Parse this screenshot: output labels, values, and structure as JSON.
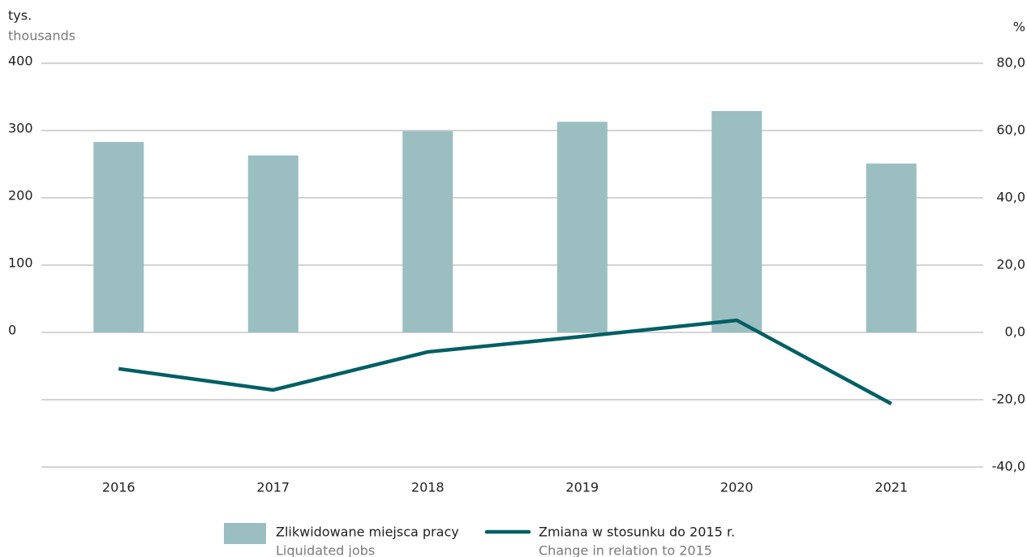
{
  "chart_data": {
    "type": "bar-line",
    "y_label": "tys.",
    "y_label_en": "thousands",
    "y2_label": "%",
    "categories": [
      "2016",
      "2017",
      "2018",
      "2019",
      "2020",
      "2021"
    ],
    "series": [
      {
        "name": "Zlikwidowane miejsca pracy",
        "name_en": "Liquidated jobs",
        "type": "bar",
        "color": "#9bbec1",
        "values": [
          283,
          263,
          299,
          313,
          329,
          251
        ]
      },
      {
        "name": "Zmiana w stosunku do 2015 r.",
        "name_en": "Change in relation to 2015",
        "type": "line",
        "axis": "y2",
        "color": "#005f63",
        "values": [
          -10.8,
          -17.1,
          -5.8,
          -1.2,
          3.6,
          -21.2
        ]
      }
    ],
    "ylim": [
      -200,
      400
    ],
    "yticks": [
      0,
      100,
      200,
      300,
      400
    ],
    "y2lim": [
      -40,
      80
    ],
    "y2ticks": [
      {
        "value": -40,
        "label": "-40,0"
      },
      {
        "value": -20,
        "label": "-20,0"
      },
      {
        "value": 0,
        "label": "0,0"
      },
      {
        "value": 20,
        "label": "20,0"
      },
      {
        "value": 40,
        "label": "40,0"
      },
      {
        "value": 60,
        "label": "60,0"
      },
      {
        "value": 80,
        "label": "80,0"
      }
    ],
    "grid": true
  }
}
